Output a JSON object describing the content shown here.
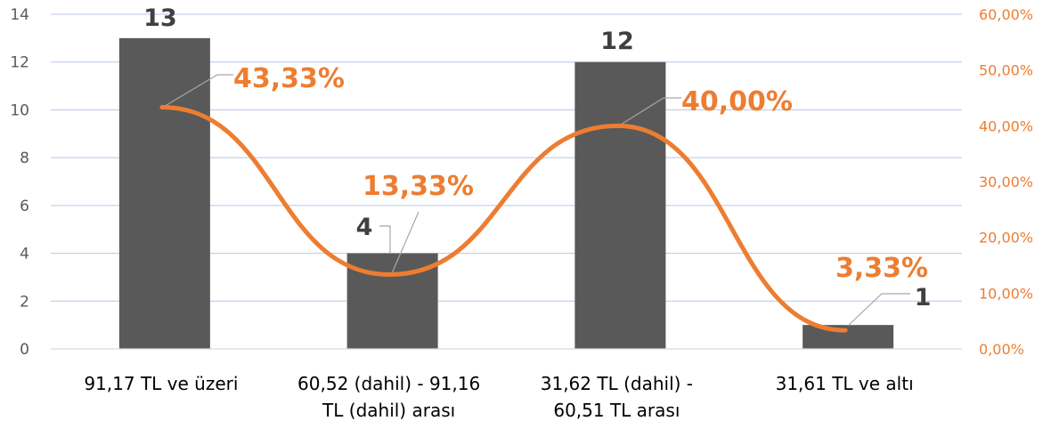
{
  "chart_data": {
    "type": "bar",
    "categories": [
      [
        "91,17 TL ve üzeri"
      ],
      [
        "60,52 (dahil) - 91,16",
        "TL (dahil) arası"
      ],
      [
        "31,62 TL (dahil) -",
        "60,51 TL arası"
      ],
      [
        "31,61 TL ve altı"
      ]
    ],
    "series": [
      {
        "type": "bar",
        "axis": "left",
        "values": [
          13,
          4,
          12,
          1
        ],
        "labels": [
          "13",
          "4",
          "12",
          "1"
        ]
      },
      {
        "type": "line",
        "smooth": true,
        "axis": "right",
        "values": [
          43.33,
          13.33,
          40.0,
          3.33
        ],
        "labels": [
          "43,33%",
          "13,33%",
          "40,00%",
          "3,33%"
        ]
      }
    ],
    "y_left": {
      "min": 0,
      "max": 14,
      "step": 2,
      "ticks": [
        "0",
        "2",
        "4",
        "6",
        "8",
        "10",
        "12",
        "14"
      ]
    },
    "y_right": {
      "min": 0,
      "max": 60,
      "step": 10,
      "ticks": [
        "0,00%",
        "10,00%",
        "20,00%",
        "30,00%",
        "40,00%",
        "50,00%",
        "60,00%"
      ]
    },
    "grid": true,
    "legend": "none",
    "colors": {
      "bar": "#595959",
      "line": "#ED7D31",
      "grid": "#B4C7E7",
      "leader": "#A6A6A6",
      "bar_label": "#404040"
    }
  }
}
